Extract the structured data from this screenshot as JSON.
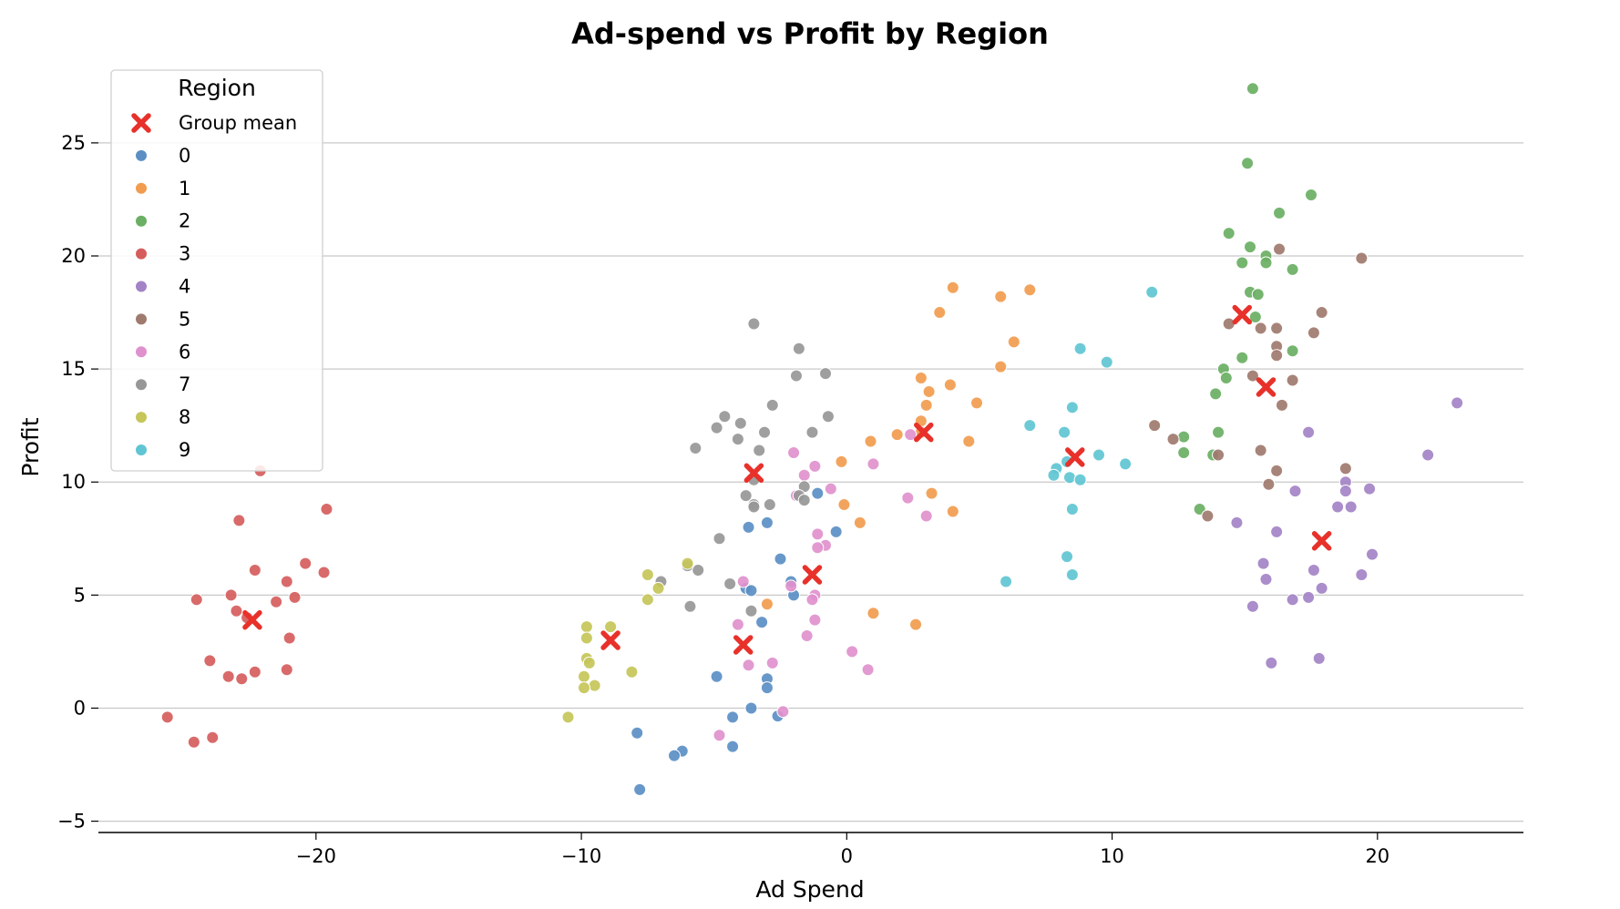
{
  "chart_data": {
    "type": "scatter",
    "title": "Ad-spend vs Profit by Region",
    "xlabel": "Ad Spend",
    "ylabel": "Profit",
    "xlim": [
      -28.2,
      25.5
    ],
    "ylim": [
      -5.5,
      28.5
    ],
    "xticks": [
      -20,
      -10,
      0,
      10,
      20
    ],
    "xtick_labels": [
      "−20",
      "−10",
      "0",
      "10",
      "20"
    ],
    "yticks": [
      -5,
      0,
      5,
      10,
      15,
      20,
      25
    ],
    "ytick_labels": [
      "−5",
      "0",
      "5",
      "10",
      "15",
      "20",
      "25"
    ],
    "grid": "horizontal",
    "legend": {
      "title": "Region",
      "placement": "top-left",
      "mean_label": "Group mean"
    },
    "colors": {
      "mean": "#e8312a",
      "grid": "#c8c8c8"
    },
    "series": [
      {
        "name": "0",
        "color": "#5b8fc4",
        "points": [
          [
            -3.7,
            8.0
          ],
          [
            -3.0,
            8.2
          ],
          [
            -2.5,
            6.6
          ],
          [
            -2.1,
            5.6
          ],
          [
            -2.0,
            5.0
          ],
          [
            -3.8,
            5.3
          ],
          [
            -3.6,
            5.2
          ],
          [
            -1.1,
            9.5
          ],
          [
            -0.4,
            7.8
          ],
          [
            -3.2,
            3.8
          ],
          [
            -3.0,
            1.3
          ],
          [
            -3.0,
            0.9
          ],
          [
            -4.9,
            1.4
          ],
          [
            -3.6,
            0.0
          ],
          [
            -4.3,
            -0.4
          ],
          [
            -2.6,
            -0.35
          ],
          [
            -7.9,
            -1.1
          ],
          [
            -6.2,
            -1.9
          ],
          [
            -6.5,
            -2.1
          ],
          [
            -4.3,
            -1.7
          ],
          [
            -7.8,
            -3.6
          ]
        ]
      },
      {
        "name": "1",
        "color": "#f19c4f",
        "points": [
          [
            4.0,
            18.6
          ],
          [
            3.5,
            17.5
          ],
          [
            5.8,
            18.2
          ],
          [
            6.9,
            18.5
          ],
          [
            6.3,
            16.2
          ],
          [
            5.8,
            15.1
          ],
          [
            2.8,
            14.6
          ],
          [
            3.1,
            14.0
          ],
          [
            3.0,
            13.4
          ],
          [
            3.9,
            14.3
          ],
          [
            4.9,
            13.5
          ],
          [
            2.8,
            12.7
          ],
          [
            2.8,
            12.2
          ],
          [
            1.9,
            12.1
          ],
          [
            0.9,
            11.8
          ],
          [
            4.6,
            11.8
          ],
          [
            -0.2,
            10.9
          ],
          [
            -0.1,
            9.0
          ],
          [
            3.2,
            9.5
          ],
          [
            4.0,
            8.7
          ],
          [
            0.5,
            8.2
          ],
          [
            1.0,
            4.2
          ],
          [
            2.6,
            3.7
          ],
          [
            -3.0,
            4.6
          ]
        ]
      },
      {
        "name": "2",
        "color": "#6aaf63",
        "points": [
          [
            15.3,
            27.4
          ],
          [
            15.1,
            24.1
          ],
          [
            17.5,
            22.7
          ],
          [
            16.3,
            21.9
          ],
          [
            14.4,
            21.0
          ],
          [
            15.2,
            20.4
          ],
          [
            15.8,
            20.0
          ],
          [
            14.9,
            19.7
          ],
          [
            15.8,
            19.7
          ],
          [
            16.8,
            19.4
          ],
          [
            15.2,
            18.4
          ],
          [
            15.5,
            18.3
          ],
          [
            15.4,
            17.3
          ],
          [
            16.8,
            15.8
          ],
          [
            14.9,
            15.5
          ],
          [
            14.2,
            15.0
          ],
          [
            14.3,
            14.6
          ],
          [
            13.9,
            13.9
          ],
          [
            14.0,
            12.2
          ],
          [
            12.7,
            12.0
          ],
          [
            12.7,
            11.3
          ],
          [
            13.8,
            11.2
          ],
          [
            13.3,
            8.8
          ]
        ]
      },
      {
        "name": "3",
        "color": "#d65d5d",
        "points": [
          [
            -22.1,
            10.5
          ],
          [
            -22.9,
            8.3
          ],
          [
            -19.6,
            8.8
          ],
          [
            -20.4,
            6.4
          ],
          [
            -22.3,
            6.1
          ],
          [
            -19.7,
            6.0
          ],
          [
            -21.1,
            5.6
          ],
          [
            -24.5,
            4.8
          ],
          [
            -23.2,
            5.0
          ],
          [
            -21.5,
            4.7
          ],
          [
            -20.8,
            4.9
          ],
          [
            -23.0,
            4.3
          ],
          [
            -22.6,
            4.0
          ],
          [
            -21.0,
            3.1
          ],
          [
            -24.0,
            2.1
          ],
          [
            -23.3,
            1.4
          ],
          [
            -22.8,
            1.3
          ],
          [
            -22.3,
            1.6
          ],
          [
            -21.1,
            1.7
          ],
          [
            -25.6,
            -0.4
          ],
          [
            -24.6,
            -1.5
          ],
          [
            -23.9,
            -1.3
          ]
        ]
      },
      {
        "name": "4",
        "color": "#a383c6",
        "points": [
          [
            23.0,
            13.5
          ],
          [
            17.4,
            12.2
          ],
          [
            21.9,
            11.2
          ],
          [
            18.8,
            10.0
          ],
          [
            18.8,
            9.6
          ],
          [
            16.9,
            9.6
          ],
          [
            19.7,
            9.7
          ],
          [
            19.0,
            8.9
          ],
          [
            18.5,
            8.9
          ],
          [
            14.7,
            8.2
          ],
          [
            16.2,
            7.8
          ],
          [
            19.8,
            6.8
          ],
          [
            15.7,
            6.4
          ],
          [
            17.6,
            6.1
          ],
          [
            19.4,
            5.9
          ],
          [
            15.8,
            5.7
          ],
          [
            17.9,
            5.3
          ],
          [
            17.4,
            4.9
          ],
          [
            16.8,
            4.8
          ],
          [
            15.3,
            4.5
          ],
          [
            16.0,
            2.0
          ],
          [
            17.8,
            2.2
          ]
        ]
      },
      {
        "name": "5",
        "color": "#9f7a6e",
        "points": [
          [
            19.4,
            19.9
          ],
          [
            16.3,
            20.3
          ],
          [
            17.9,
            17.5
          ],
          [
            14.4,
            17.0
          ],
          [
            15.6,
            16.8
          ],
          [
            16.2,
            16.8
          ],
          [
            17.6,
            16.6
          ],
          [
            16.2,
            16.0
          ],
          [
            16.2,
            15.6
          ],
          [
            15.3,
            14.7
          ],
          [
            16.8,
            14.5
          ],
          [
            16.4,
            13.4
          ],
          [
            11.6,
            12.5
          ],
          [
            12.3,
            11.9
          ],
          [
            14.0,
            11.2
          ],
          [
            15.6,
            11.4
          ],
          [
            18.8,
            10.6
          ],
          [
            16.2,
            10.5
          ],
          [
            15.9,
            9.9
          ],
          [
            13.6,
            8.5
          ]
        ]
      },
      {
        "name": "6",
        "color": "#df91cd",
        "points": [
          [
            2.4,
            12.1
          ],
          [
            -2.0,
            11.3
          ],
          [
            -1.2,
            10.7
          ],
          [
            1.0,
            10.8
          ],
          [
            -1.6,
            10.3
          ],
          [
            -0.6,
            9.7
          ],
          [
            -1.9,
            9.4
          ],
          [
            2.3,
            9.3
          ],
          [
            3.0,
            8.5
          ],
          [
            -1.1,
            7.7
          ],
          [
            -0.8,
            7.2
          ],
          [
            -1.1,
            7.1
          ],
          [
            -2.1,
            5.4
          ],
          [
            -3.9,
            5.6
          ],
          [
            -1.2,
            5.0
          ],
          [
            -1.3,
            4.8
          ],
          [
            -1.2,
            3.9
          ],
          [
            -4.1,
            3.7
          ],
          [
            -1.5,
            3.2
          ],
          [
            -2.8,
            2.0
          ],
          [
            -3.7,
            1.9
          ],
          [
            0.2,
            2.5
          ],
          [
            0.8,
            1.7
          ],
          [
            -2.4,
            -0.15
          ],
          [
            -4.8,
            -1.2
          ]
        ]
      },
      {
        "name": "7",
        "color": "#979797",
        "points": [
          [
            -3.5,
            17.0
          ],
          [
            -1.8,
            15.9
          ],
          [
            -0.8,
            14.8
          ],
          [
            -1.9,
            14.7
          ],
          [
            -2.8,
            13.4
          ],
          [
            -4.6,
            12.9
          ],
          [
            -0.7,
            12.9
          ],
          [
            -4.9,
            12.4
          ],
          [
            -4.0,
            12.6
          ],
          [
            -3.1,
            12.2
          ],
          [
            -1.3,
            12.2
          ],
          [
            -4.1,
            11.9
          ],
          [
            -5.7,
            11.5
          ],
          [
            -3.3,
            11.4
          ],
          [
            -3.5,
            10.1
          ],
          [
            -1.6,
            9.8
          ],
          [
            -1.8,
            9.4
          ],
          [
            -3.8,
            9.4
          ],
          [
            -3.5,
            9.0
          ],
          [
            -1.6,
            9.2
          ],
          [
            -2.9,
            9.0
          ],
          [
            -3.5,
            8.9
          ],
          [
            -4.8,
            7.5
          ],
          [
            -7.0,
            5.6
          ],
          [
            -5.6,
            6.1
          ],
          [
            -6.0,
            6.3
          ],
          [
            -4.4,
            5.5
          ],
          [
            -5.9,
            4.5
          ],
          [
            -3.6,
            4.3
          ]
        ]
      },
      {
        "name": "8",
        "color": "#c6c659",
        "points": [
          [
            -6.0,
            6.4
          ],
          [
            -7.5,
            5.9
          ],
          [
            -7.1,
            5.3
          ],
          [
            -7.5,
            4.8
          ],
          [
            -9.8,
            3.6
          ],
          [
            -8.9,
            3.6
          ],
          [
            -9.8,
            3.1
          ],
          [
            -9.8,
            2.2
          ],
          [
            -9.7,
            2.0
          ],
          [
            -9.9,
            1.4
          ],
          [
            -9.5,
            1.0
          ],
          [
            -8.1,
            1.6
          ],
          [
            -9.9,
            0.9
          ],
          [
            -10.5,
            -0.4
          ]
        ]
      },
      {
        "name": "9",
        "color": "#5fc5d3",
        "points": [
          [
            11.5,
            18.4
          ],
          [
            8.8,
            15.9
          ],
          [
            9.8,
            15.3
          ],
          [
            8.5,
            13.3
          ],
          [
            6.9,
            12.5
          ],
          [
            8.2,
            12.2
          ],
          [
            9.5,
            11.2
          ],
          [
            8.3,
            10.9
          ],
          [
            7.9,
            10.6
          ],
          [
            10.5,
            10.8
          ],
          [
            7.8,
            10.3
          ],
          [
            8.4,
            10.2
          ],
          [
            8.8,
            10.1
          ],
          [
            8.5,
            8.8
          ],
          [
            8.3,
            6.7
          ],
          [
            6.0,
            5.6
          ],
          [
            8.5,
            5.9
          ]
        ]
      }
    ],
    "group_means": [
      [
        -22.4,
        3.9
      ],
      [
        -8.9,
        3.0
      ],
      [
        -3.9,
        2.8
      ],
      [
        -1.3,
        5.9
      ],
      [
        -3.5,
        10.4
      ],
      [
        2.9,
        12.2
      ],
      [
        8.6,
        11.1
      ],
      [
        14.9,
        17.4
      ],
      [
        15.8,
        14.2
      ],
      [
        17.9,
        7.4
      ]
    ]
  }
}
